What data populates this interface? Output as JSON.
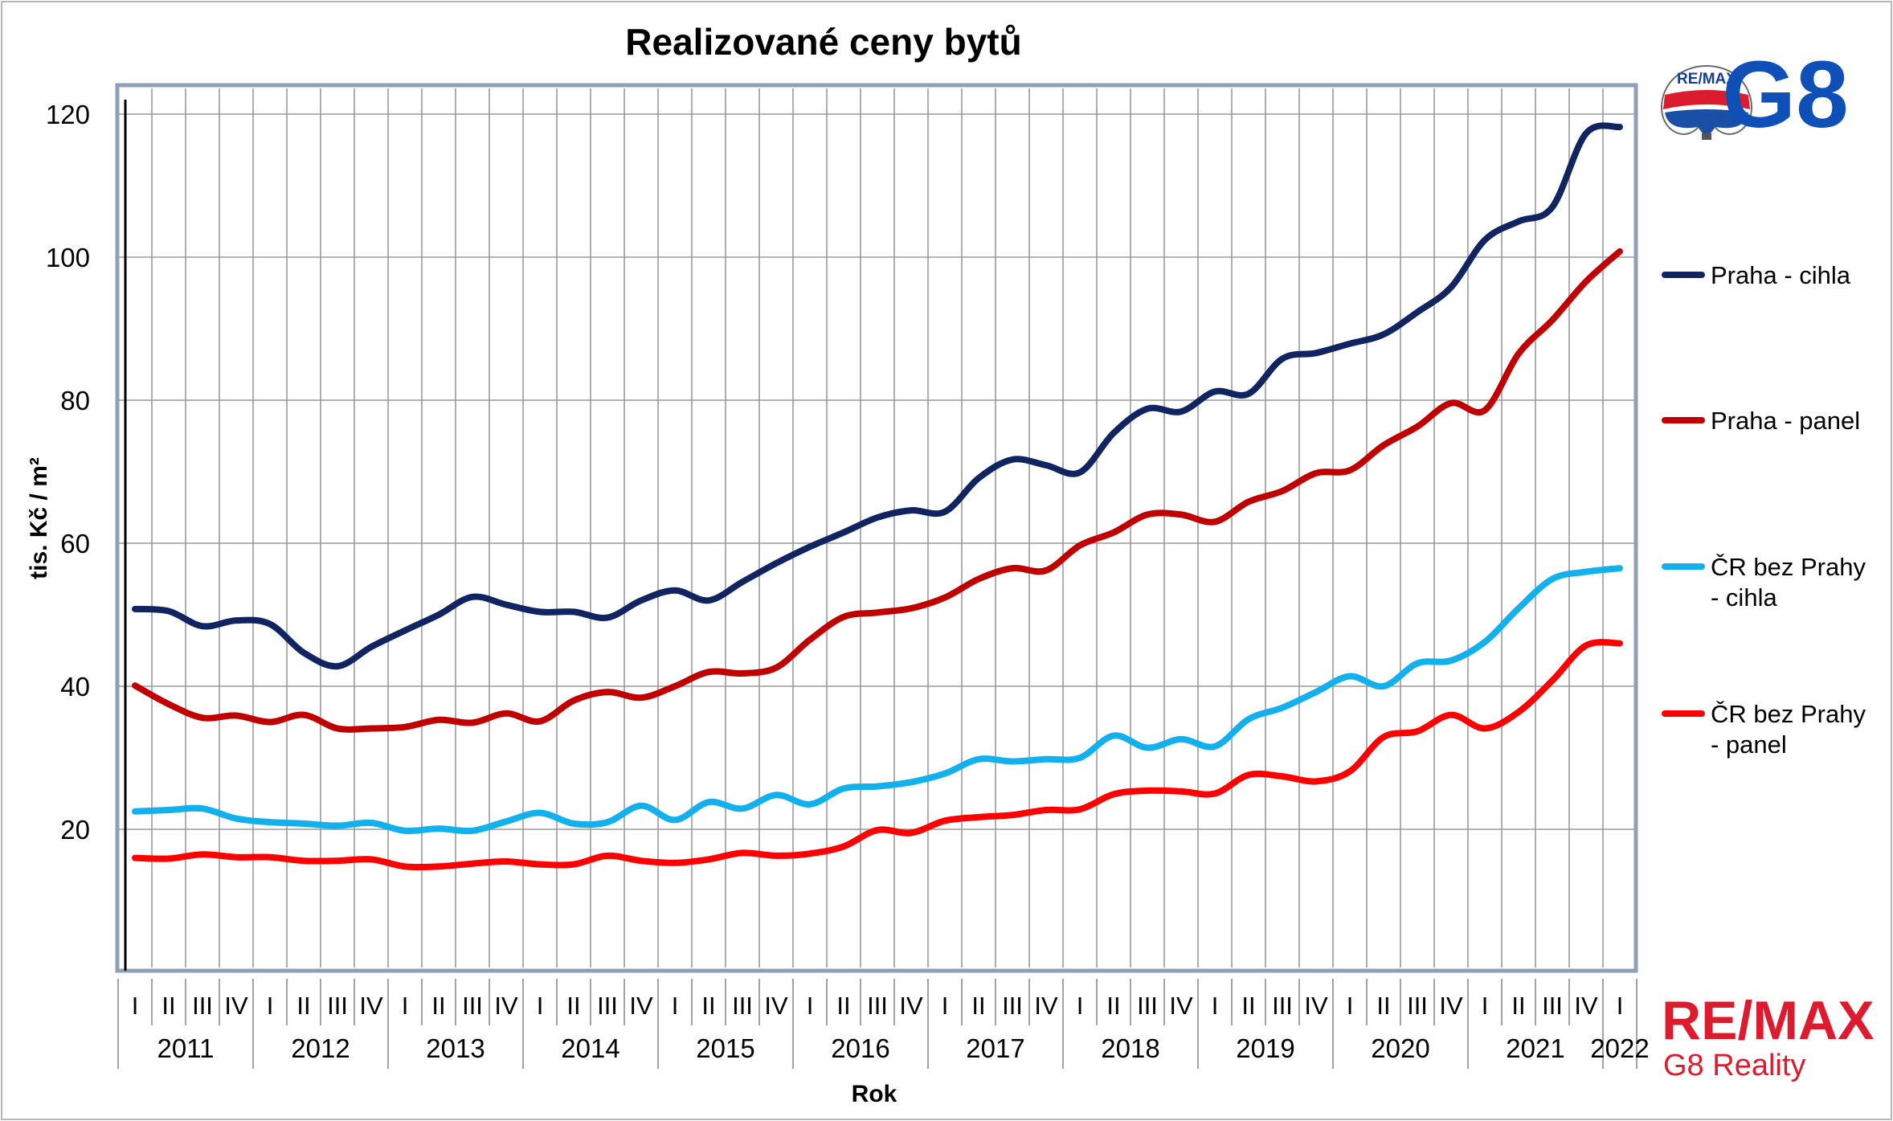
{
  "chart_data": {
    "type": "line",
    "title": "Realizované ceny bytů",
    "xlabel": "Rok",
    "ylabel": "tis. Kč / m²",
    "ylim": [
      0,
      120
    ],
    "yticks": [
      20,
      40,
      60,
      80,
      100,
      120
    ],
    "grid": true,
    "legend_position": "right",
    "x": [
      "2011 I",
      "2011 II",
      "2011 III",
      "2011 IV",
      "2012 I",
      "2012 II",
      "2012 III",
      "2012 IV",
      "2013 I",
      "2013 II",
      "2013 III",
      "2013 IV",
      "2014 I",
      "2014 II",
      "2014 III",
      "2014 IV",
      "2015 I",
      "2015 II",
      "2015 III",
      "2015 IV",
      "2016 I",
      "2016 II",
      "2016 III",
      "2016 IV",
      "2017 I",
      "2017 II",
      "2017 III",
      "2017 IV",
      "2018 I",
      "2018 II",
      "2018 III",
      "2018 IV",
      "2019 I",
      "2019 II",
      "2019 III",
      "2019 IV",
      "2020 I",
      "2020 II",
      "2020 III",
      "2020 IV",
      "2021 I",
      "2021 II",
      "2021 III",
      "2021 IV",
      "2022 I"
    ],
    "quarter_labels": [
      "I",
      "II",
      "III",
      "IV",
      "I",
      "II",
      "III",
      "IV",
      "I",
      "II",
      "III",
      "IV",
      "I",
      "II",
      "III",
      "IV",
      "I",
      "II",
      "III",
      "IV",
      "I",
      "II",
      "III",
      "IV",
      "I",
      "II",
      "III",
      "IV",
      "I",
      "II",
      "III",
      "IV",
      "I",
      "II",
      "III",
      "IV",
      "I",
      "II",
      "III",
      "IV",
      "I",
      "II",
      "III",
      "IV",
      "I"
    ],
    "year_labels": [
      "2011",
      "2012",
      "2013",
      "2014",
      "2015",
      "2016",
      "2017",
      "2018",
      "2019",
      "2020",
      "2021",
      "2022"
    ],
    "series": [
      {
        "name": "Praha - cihla",
        "color": "#0f2461",
        "values": [
          50.8,
          50.5,
          48.4,
          49.2,
          48.7,
          44.7,
          42.8,
          45.5,
          47.8,
          50.0,
          52.5,
          51.4,
          50.4,
          50.4,
          49.6,
          52.0,
          53.4,
          52.0,
          54.6,
          57.2,
          59.5,
          61.5,
          63.6,
          64.6,
          64.4,
          69.1,
          71.7,
          70.9,
          69.9,
          75.4,
          78.8,
          78.4,
          81.2,
          80.9,
          85.8,
          86.6,
          87.9,
          89.2,
          92.3,
          95.8,
          102.4,
          105.0,
          107.0,
          117.3,
          118.2
        ]
      },
      {
        "name": "Praha - panel",
        "color": "#c00000",
        "values": [
          40.1,
          37.5,
          35.6,
          35.9,
          35.0,
          36.0,
          34.1,
          34.1,
          34.3,
          35.3,
          34.9,
          36.2,
          35.1,
          38.0,
          39.2,
          38.4,
          40.0,
          42.0,
          41.8,
          42.6,
          46.5,
          49.7,
          50.3,
          50.9,
          52.4,
          55.0,
          56.5,
          56.2,
          59.7,
          61.5,
          64.0,
          64.0,
          63.0,
          65.8,
          67.3,
          69.8,
          70.2,
          73.7,
          76.3,
          79.6,
          78.6,
          86.5,
          91.2,
          96.6,
          100.8
        ]
      },
      {
        "name": "ČR bez Prahy - cihla",
        "color": "#12b0ec",
        "values": [
          22.5,
          22.7,
          22.9,
          21.5,
          21.0,
          20.8,
          20.5,
          20.9,
          19.8,
          20.1,
          19.8,
          21.1,
          22.3,
          20.8,
          21.0,
          23.3,
          21.3,
          23.8,
          22.9,
          24.8,
          23.5,
          25.7,
          26.0,
          26.6,
          27.8,
          29.8,
          29.5,
          29.8,
          30.0,
          33.1,
          31.4,
          32.6,
          31.6,
          35.4,
          37.0,
          39.2,
          41.4,
          40.0,
          43.2,
          43.6,
          46.2,
          50.9,
          55.0,
          56.0,
          56.5
        ]
      },
      {
        "name": "ČR bez Prahy - panel",
        "color": "#ff0000",
        "values": [
          16.0,
          15.9,
          16.5,
          16.1,
          16.1,
          15.6,
          15.6,
          15.8,
          14.8,
          14.8,
          15.2,
          15.5,
          15.1,
          15.1,
          16.3,
          15.6,
          15.3,
          15.8,
          16.7,
          16.3,
          16.6,
          17.6,
          19.9,
          19.5,
          21.2,
          21.7,
          22.0,
          22.7,
          22.8,
          24.9,
          25.4,
          25.3,
          25.0,
          27.6,
          27.4,
          26.7,
          28.1,
          32.9,
          33.7,
          36.0,
          34.1,
          36.4,
          40.8,
          45.7,
          46.0
        ]
      }
    ]
  },
  "branding": {
    "remax_wordmark": "RE/MAX",
    "office_name": "G8 Reality",
    "logo_badge": "RE/MAX",
    "logo_mark": "G8",
    "brand_red": "#dc1c2e",
    "brand_blue": "#0e4fb8"
  }
}
